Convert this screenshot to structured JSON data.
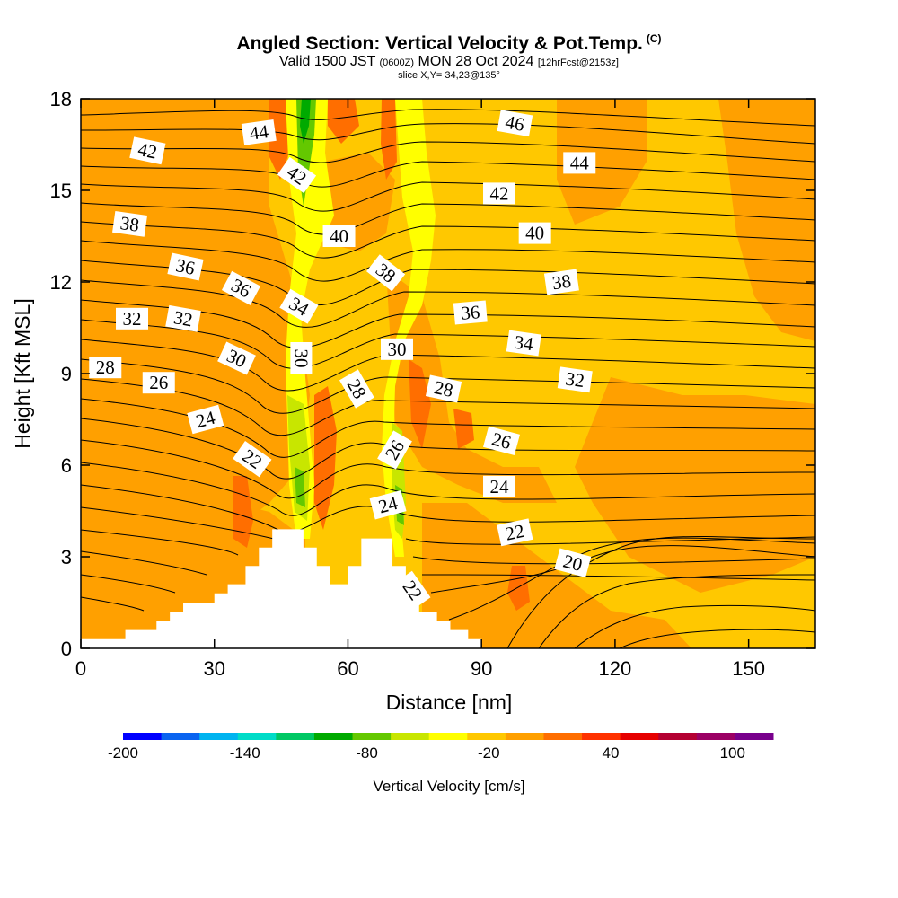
{
  "header": {
    "title": "Angled Section: Vertical Velocity & Pot.Temp.",
    "copyright": "(C)",
    "valid_prefix": "Valid 1500 JST",
    "valid_utc": "(0600Z)",
    "valid_date": "MON 28 Oct 2024",
    "forecast": "[12hrFcst@2153z]",
    "slice": "slice X,Y= 34,23@135°"
  },
  "chart_data": {
    "type": "heatmap",
    "xlabel": "Distance [nm]",
    "ylabel": "Height [Kft MSL]",
    "xlim": [
      0,
      165
    ],
    "ylim": [
      0,
      18
    ],
    "xticks": [
      0,
      30,
      60,
      90,
      120,
      150
    ],
    "yticks": [
      0,
      3,
      6,
      9,
      12,
      15,
      18
    ],
    "colorbar": {
      "title": "Vertical Velocity [cm/s]",
      "ticks": [
        -200,
        -140,
        -80,
        -20,
        40,
        100
      ],
      "range": [
        -200,
        120
      ],
      "colors": [
        "#0000ff",
        "#0a64f0",
        "#00b4f0",
        "#00dcc8",
        "#00c864",
        "#00aa00",
        "#64c800",
        "#c8e600",
        "#ffff00",
        "#ffc800",
        "#ffa000",
        "#ff6e00",
        "#ff3200",
        "#e60000",
        "#b40032",
        "#9b0064",
        "#78008c"
      ]
    },
    "terrain": {
      "x": [
        0,
        10,
        10,
        17,
        17,
        20,
        20,
        23,
        23,
        30,
        30,
        33,
        33,
        37,
        37,
        40,
        40,
        43,
        43,
        47,
        47,
        50,
        50,
        53,
        53,
        56,
        56,
        60,
        60,
        63,
        63,
        66,
        66,
        70,
        70,
        73,
        73,
        76,
        76,
        80,
        80,
        83,
        83,
        87,
        87,
        90,
        90
      ],
      "h_kft": [
        0.3,
        0.3,
        0.6,
        0.6,
        0.9,
        0.9,
        1.2,
        1.2,
        1.5,
        1.5,
        1.8,
        1.8,
        2.1,
        2.1,
        2.7,
        2.7,
        3.3,
        3.3,
        3.9,
        3.9,
        3.9,
        3.9,
        3.3,
        3.3,
        2.7,
        2.7,
        2.1,
        2.1,
        2.7,
        2.7,
        3.6,
        3.6,
        3.6,
        3.6,
        2.7,
        2.7,
        1.8,
        1.8,
        1.2,
        1.2,
        0.9,
        0.9,
        0.6,
        0.6,
        0.3,
        0.3,
        0.3
      ]
    },
    "contour_labels": [
      {
        "text": "44",
        "x": 40,
        "y": 16.9,
        "angle": -8
      },
      {
        "text": "46",
        "x": 97.5,
        "y": 17.2,
        "angle": 10
      },
      {
        "text": "42",
        "x": 15,
        "y": 16.3,
        "angle": 12
      },
      {
        "text": "42",
        "x": 48.5,
        "y": 15.5,
        "angle": 35
      },
      {
        "text": "44",
        "x": 112,
        "y": 15.9,
        "angle": 0
      },
      {
        "text": "42",
        "x": 94,
        "y": 14.9,
        "angle": 0
      },
      {
        "text": "38",
        "x": 11,
        "y": 13.9,
        "angle": 8
      },
      {
        "text": "40",
        "x": 58,
        "y": 13.5,
        "angle": 0
      },
      {
        "text": "40",
        "x": 102,
        "y": 13.6,
        "angle": 0
      },
      {
        "text": "36",
        "x": 23.5,
        "y": 12.5,
        "angle": 12
      },
      {
        "text": "38",
        "x": 68.5,
        "y": 12.3,
        "angle": 38
      },
      {
        "text": "38",
        "x": 108,
        "y": 12.0,
        "angle": -8
      },
      {
        "text": "36",
        "x": 36,
        "y": 11.8,
        "angle": 28
      },
      {
        "text": "34",
        "x": 49,
        "y": 11.2,
        "angle": 30
      },
      {
        "text": "36",
        "x": 87.5,
        "y": 11.0,
        "angle": -5
      },
      {
        "text": "32",
        "x": 11.5,
        "y": 10.8,
        "angle": 0
      },
      {
        "text": "32",
        "x": 23,
        "y": 10.8,
        "angle": 10
      },
      {
        "text": "34",
        "x": 99.5,
        "y": 10.0,
        "angle": 8
      },
      {
        "text": "30",
        "x": 35,
        "y": 9.5,
        "angle": 25
      },
      {
        "text": "30",
        "x": 49.5,
        "y": 9.5,
        "angle": 90
      },
      {
        "text": "30",
        "x": 71,
        "y": 9.8,
        "angle": 0
      },
      {
        "text": "28",
        "x": 5.5,
        "y": 9.2,
        "angle": 0
      },
      {
        "text": "26",
        "x": 17.5,
        "y": 8.7,
        "angle": 0
      },
      {
        "text": "28",
        "x": 62,
        "y": 8.5,
        "angle": 60
      },
      {
        "text": "28",
        "x": 81.5,
        "y": 8.5,
        "angle": 12
      },
      {
        "text": "32",
        "x": 111,
        "y": 8.8,
        "angle": 8
      },
      {
        "text": "24",
        "x": 28,
        "y": 7.5,
        "angle": -15
      },
      {
        "text": "26",
        "x": 70.5,
        "y": 6.5,
        "angle": -60
      },
      {
        "text": "26",
        "x": 94.5,
        "y": 6.8,
        "angle": 15
      },
      {
        "text": "22",
        "x": 38.5,
        "y": 6.2,
        "angle": 35
      },
      {
        "text": "24",
        "x": 94,
        "y": 5.3,
        "angle": 0
      },
      {
        "text": "24",
        "x": 69,
        "y": 4.7,
        "angle": -15
      },
      {
        "text": "22",
        "x": 97.5,
        "y": 3.8,
        "angle": -12
      },
      {
        "text": "20",
        "x": 110.5,
        "y": 2.8,
        "angle": 15
      },
      {
        "text": "22",
        "x": 74.5,
        "y": 1.9,
        "angle": 55
      }
    ]
  }
}
